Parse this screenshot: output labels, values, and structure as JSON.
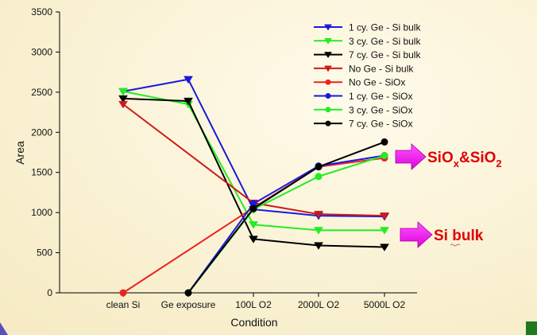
{
  "chart_data": {
    "type": "line",
    "xlabel": "Condition",
    "ylabel": "Area",
    "categories": [
      "clean Si",
      "Ge exposure",
      "100L O2",
      "2000L O2",
      "5000L O2"
    ],
    "ylim": [
      0,
      3500
    ],
    "yticks": [
      0,
      500,
      1000,
      1500,
      2000,
      2500,
      3000,
      3500
    ],
    "grid": false,
    "legend_position": "top-right",
    "series": [
      {
        "name": "1 cy. Ge - Si  bulk",
        "color": "#1a1adc",
        "marker": "triangle-down",
        "values": [
          2510,
          2660,
          1040,
          960,
          950
        ]
      },
      {
        "name": "3 cy. Ge - Si  bulk",
        "color": "#22ee22",
        "marker": "triangle-down",
        "values": [
          2510,
          2350,
          850,
          780,
          780
        ]
      },
      {
        "name": "7 cy. Ge - Si  bulk",
        "color": "#000000",
        "marker": "triangle-down",
        "values": [
          2420,
          2390,
          670,
          590,
          570
        ]
      },
      {
        "name": "No Ge - Si  bulk",
        "color": "#cc1a1a",
        "marker": "triangle-down",
        "values": [
          2350,
          null,
          1120,
          980,
          960
        ]
      },
      {
        "name": "No Ge - SiOx",
        "color": "#ee2222",
        "marker": "circle",
        "values": [
          0,
          null,
          1060,
          1570,
          1680
        ]
      },
      {
        "name": "1 cy. Ge - SiOx",
        "color": "#1a1adc",
        "marker": "circle",
        "values": [
          null,
          0,
          1110,
          1580,
          1710
        ]
      },
      {
        "name": "3 cy. Ge - SiOx",
        "color": "#22ee22",
        "marker": "circle",
        "values": [
          null,
          0,
          1040,
          1450,
          1710
        ]
      },
      {
        "name": "7 cy. Ge - SiOx",
        "color": "#000000",
        "marker": "circle",
        "values": [
          null,
          0,
          1050,
          1570,
          1880
        ]
      }
    ],
    "annotations": [
      {
        "text": "SiOx&SiO2",
        "base": "SiO",
        "sub1": "x",
        "mid": "&SiO",
        "sub2": "2",
        "color": "#e00000"
      },
      {
        "text": "Si bulk",
        "color": "#e00000"
      }
    ],
    "arrow_color": "#ff00ff"
  }
}
